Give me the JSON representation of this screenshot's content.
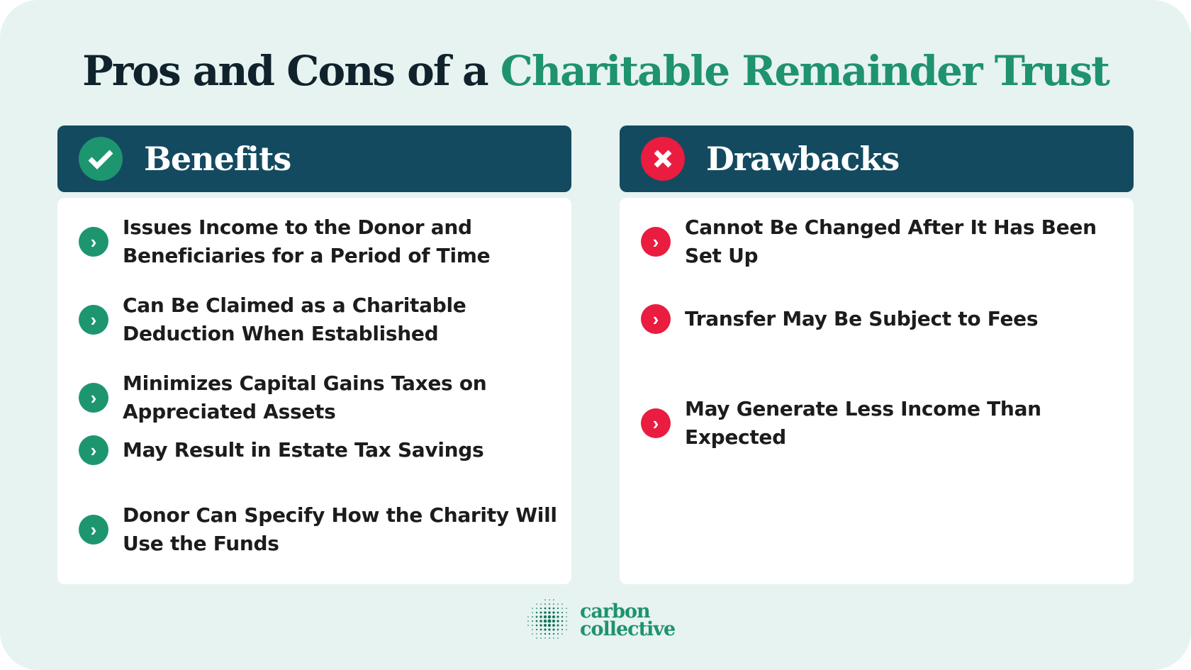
{
  "title": {
    "prefix": "Pros and Cons of a ",
    "accent": "Charitable Remainder Trust"
  },
  "benefits": {
    "heading": "Benefits",
    "icon": "check-circle-icon",
    "color": "#1d966f",
    "items": [
      "Issues Income to the Donor and Beneficiaries for a Period of Time",
      "Can Be Claimed as a Charitable Deduction When Established",
      "Minimizes Capital Gains Taxes on Appreciated Assets",
      "May Result in Estate Tax Savings",
      "Donor Can Specify How the Charity Will Use the Funds"
    ]
  },
  "drawbacks": {
    "heading": "Drawbacks",
    "icon": "x-circle-icon",
    "color": "#ea1c3f",
    "items": [
      "Cannot Be Changed After It Has Been Set Up",
      "Transfer May Be Subject to Fees",
      "May Generate Less Income Than Expected"
    ]
  },
  "logo": {
    "line1": "carbon",
    "line2": "collective"
  }
}
